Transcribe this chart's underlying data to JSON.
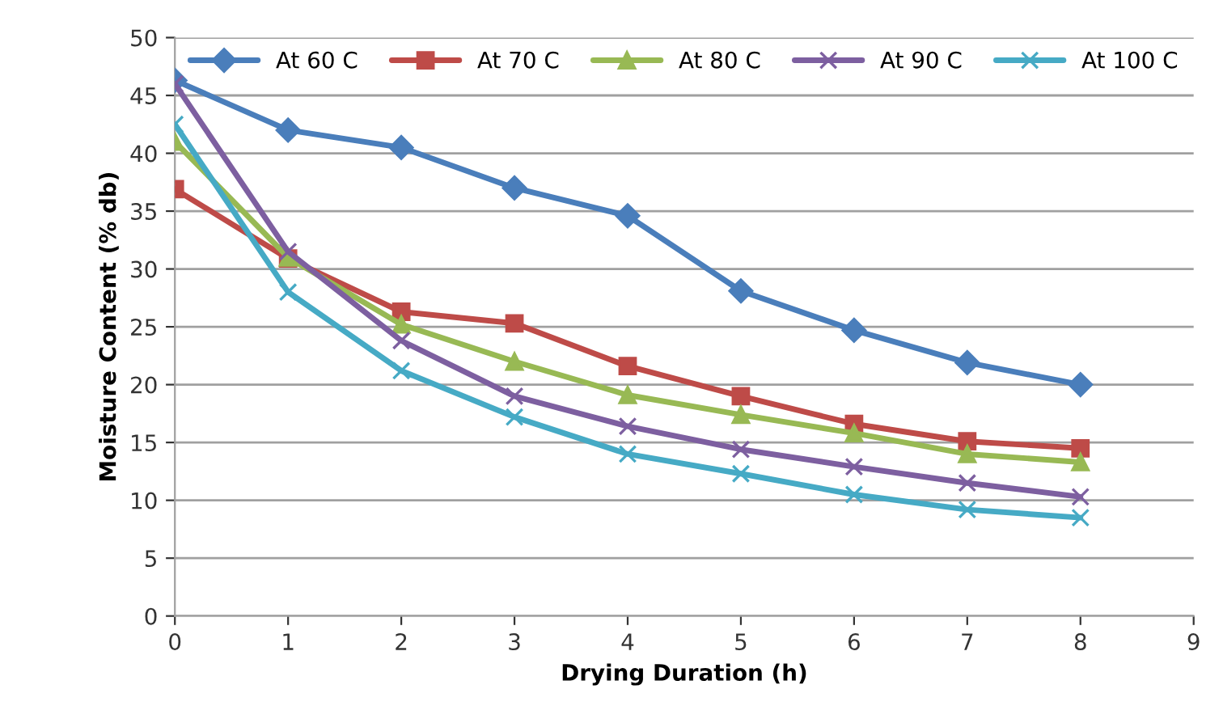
{
  "chart_data": {
    "type": "line",
    "xlabel": "Drying Duration (h)",
    "ylabel": "Moisture Content (% db)",
    "x": [
      0,
      1,
      2,
      3,
      4,
      5,
      6,
      7,
      8
    ],
    "series": [
      {
        "name": "At 60 C",
        "color": "#4a7ebb",
        "marker": "diamond",
        "values": [
          46.3,
          42.0,
          40.5,
          37.0,
          34.6,
          28.1,
          24.7,
          21.9,
          20.0
        ]
      },
      {
        "name": "At 70 C",
        "color": "#be4b48",
        "marker": "square",
        "values": [
          36.9,
          30.9,
          26.3,
          25.3,
          21.6,
          19.0,
          16.6,
          15.1,
          14.5
        ]
      },
      {
        "name": "At 80 C",
        "color": "#98b954",
        "marker": "triangle",
        "values": [
          41.0,
          31.0,
          25.2,
          22.0,
          19.1,
          17.4,
          15.8,
          14.0,
          13.3
        ]
      },
      {
        "name": "At 90 C",
        "color": "#7d5fa0",
        "marker": "cross",
        "values": [
          46.0,
          31.5,
          23.8,
          19.0,
          16.4,
          14.4,
          12.9,
          11.5,
          10.3
        ]
      },
      {
        "name": "At 100 C",
        "color": "#46aac5",
        "marker": "cross",
        "values": [
          42.5,
          28.0,
          21.2,
          17.2,
          14.0,
          12.3,
          10.5,
          9.2,
          8.5
        ]
      }
    ],
    "xlim": [
      0,
      9
    ],
    "xticks": [
      0,
      1,
      2,
      3,
      4,
      5,
      6,
      7,
      8,
      9
    ],
    "ylim": [
      0,
      50
    ],
    "yticks": [
      0,
      5,
      10,
      15,
      20,
      25,
      30,
      35,
      40,
      45,
      50
    ],
    "grid": "y",
    "legend": "top",
    "line_style": "solid"
  }
}
